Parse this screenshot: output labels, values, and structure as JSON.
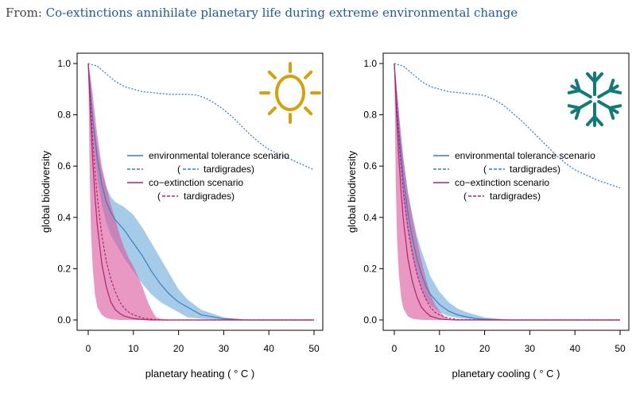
{
  "header": {
    "prefix": "From:",
    "link_text": "Co-extinctions annihilate planetary life during extreme environmental change"
  },
  "colors": {
    "tolerance": "#3a7fc1",
    "tolerance_band": "#6aa9d8",
    "coextinction": "#b0246e",
    "coextinction_band": "#d9549a",
    "sun": "#d4a20f",
    "snowflake": "#127a78",
    "header_link": "#1f5aa0"
  },
  "chart_data": [
    {
      "type": "line",
      "icon": "sun-icon",
      "xlabel": "planetary heating ( ° C )",
      "ylabel": "global biodiversity",
      "xlim": [
        0,
        50
      ],
      "ylim": [
        0,
        1
      ],
      "xticks": [
        "0",
        "10",
        "20",
        "30",
        "40",
        "50"
      ],
      "yticks": [
        "0.0",
        "0.2",
        "0.4",
        "0.6",
        "0.8",
        "1.0"
      ],
      "grid": false,
      "legend_position": "center-right",
      "legend": [
        "environmental tolerance scenario",
        "(",
        "tardigrades)",
        "co−extinction scenario",
        "(",
        "tardigrades)"
      ],
      "series": [
        {
          "kind": "tolerance-mean",
          "x": [
            0,
            1,
            2,
            3,
            4,
            5,
            6,
            8,
            10,
            12,
            14,
            16,
            18,
            20,
            22,
            25,
            30,
            35,
            40,
            50
          ],
          "values": [
            1.0,
            0.78,
            0.63,
            0.53,
            0.46,
            0.42,
            0.39,
            0.35,
            0.3,
            0.25,
            0.19,
            0.14,
            0.1,
            0.07,
            0.05,
            0.02,
            0.005,
            0.0,
            0.0,
            0.0
          ]
        },
        {
          "kind": "tolerance-upper",
          "x": [
            0,
            1,
            2,
            3,
            4,
            5,
            6,
            8,
            10,
            12,
            14,
            16,
            18,
            20,
            22,
            25,
            30,
            35,
            40,
            50
          ],
          "values": [
            1.0,
            0.82,
            0.68,
            0.58,
            0.52,
            0.48,
            0.46,
            0.44,
            0.41,
            0.36,
            0.3,
            0.24,
            0.18,
            0.12,
            0.08,
            0.04,
            0.01,
            0.0,
            0.0,
            0.0
          ]
        },
        {
          "kind": "tolerance-lower",
          "x": [
            0,
            1,
            2,
            3,
            4,
            5,
            6,
            8,
            10,
            12,
            14,
            16,
            18,
            20,
            22,
            25,
            30,
            35,
            40,
            50
          ],
          "values": [
            1.0,
            0.72,
            0.55,
            0.45,
            0.38,
            0.33,
            0.3,
            0.24,
            0.19,
            0.14,
            0.1,
            0.07,
            0.05,
            0.03,
            0.01,
            0.005,
            0.0,
            0.0,
            0.0,
            0.0
          ]
        },
        {
          "kind": "tardigrades-tolerance",
          "x": [
            0,
            2,
            4,
            6,
            8,
            10,
            12,
            15,
            18,
            20,
            22,
            24,
            26,
            28,
            30,
            32,
            34,
            36,
            38,
            40,
            45,
            50
          ],
          "values": [
            1.0,
            0.99,
            0.96,
            0.93,
            0.91,
            0.9,
            0.89,
            0.885,
            0.88,
            0.88,
            0.88,
            0.877,
            0.865,
            0.845,
            0.82,
            0.79,
            0.755,
            0.72,
            0.69,
            0.665,
            0.625,
            0.585
          ]
        },
        {
          "kind": "coextinction-mean",
          "x": [
            0,
            0.5,
            1,
            1.5,
            2,
            3,
            4,
            5,
            6,
            7,
            8,
            10,
            12,
            14,
            16,
            20,
            50
          ],
          "values": [
            1.0,
            0.8,
            0.62,
            0.48,
            0.37,
            0.22,
            0.13,
            0.07,
            0.04,
            0.025,
            0.015,
            0.006,
            0.002,
            0.0,
            0.0,
            0.0,
            0.0
          ]
        },
        {
          "kind": "coextinction-upper",
          "x": [
            0,
            0.5,
            1,
            1.5,
            2,
            3,
            4,
            5,
            6,
            7,
            8,
            9,
            10,
            11,
            12,
            13,
            14,
            15,
            16,
            18,
            20,
            50
          ],
          "values": [
            1.0,
            0.95,
            0.88,
            0.8,
            0.72,
            0.6,
            0.52,
            0.45,
            0.39,
            0.33,
            0.28,
            0.24,
            0.21,
            0.17,
            0.13,
            0.08,
            0.04,
            0.01,
            0.005,
            0.001,
            0.0,
            0.0
          ]
        },
        {
          "kind": "coextinction-lower",
          "x": [
            0,
            0.3,
            0.6,
            1,
            1.5,
            2,
            3,
            4,
            5,
            7,
            10,
            50
          ],
          "values": [
            1.0,
            0.6,
            0.35,
            0.2,
            0.1,
            0.05,
            0.02,
            0.008,
            0.003,
            0.0,
            0.0,
            0.0
          ]
        },
        {
          "kind": "tardigrades-coextinction",
          "x": [
            0,
            0.5,
            1,
            1.5,
            2,
            3,
            4,
            5,
            6,
            7,
            8,
            9,
            10,
            12,
            14,
            16,
            20,
            30,
            40,
            50
          ],
          "values": [
            1.0,
            0.85,
            0.7,
            0.58,
            0.48,
            0.33,
            0.23,
            0.16,
            0.11,
            0.07,
            0.045,
            0.03,
            0.02,
            0.008,
            0.003,
            0.0,
            0.0,
            0.0,
            0.0,
            0.0
          ]
        }
      ]
    },
    {
      "type": "line",
      "icon": "snowflake-icon",
      "xlabel": "planetary cooling ( ° C )",
      "ylabel": "global biodiversity",
      "xlim": [
        0,
        50
      ],
      "ylim": [
        0,
        1
      ],
      "xticks": [
        "0",
        "10",
        "20",
        "30",
        "40",
        "50"
      ],
      "yticks": [
        "0.0",
        "0.2",
        "0.4",
        "0.6",
        "0.8",
        "1.0"
      ],
      "grid": false,
      "legend_position": "center-right",
      "legend": [
        "environmental tolerance scenario",
        "(",
        "tardigrades)",
        "co−extinction scenario",
        "(",
        "tardigrades)"
      ],
      "series": [
        {
          "kind": "tolerance-mean",
          "x": [
            0,
            0.5,
            1,
            1.5,
            2,
            3,
            4,
            5,
            6,
            7,
            8,
            10,
            12,
            14,
            16,
            18,
            20,
            25,
            30,
            50
          ],
          "values": [
            1.0,
            0.86,
            0.74,
            0.64,
            0.55,
            0.42,
            0.32,
            0.24,
            0.18,
            0.13,
            0.1,
            0.06,
            0.035,
            0.02,
            0.012,
            0.006,
            0.003,
            0.0,
            0.0,
            0.0
          ]
        },
        {
          "kind": "tolerance-upper",
          "x": [
            0,
            0.5,
            1,
            1.5,
            2,
            3,
            4,
            5,
            6,
            7,
            8,
            10,
            12,
            14,
            16,
            18,
            20,
            25,
            30,
            50
          ],
          "values": [
            1.0,
            0.9,
            0.8,
            0.71,
            0.63,
            0.5,
            0.41,
            0.33,
            0.27,
            0.22,
            0.17,
            0.11,
            0.07,
            0.045,
            0.03,
            0.02,
            0.01,
            0.002,
            0.0,
            0.0
          ]
        },
        {
          "kind": "tolerance-lower",
          "x": [
            0,
            0.5,
            1,
            1.5,
            2,
            3,
            4,
            5,
            6,
            7,
            8,
            10,
            12,
            14,
            16,
            20,
            50
          ],
          "values": [
            1.0,
            0.82,
            0.67,
            0.56,
            0.47,
            0.34,
            0.25,
            0.18,
            0.12,
            0.08,
            0.06,
            0.03,
            0.015,
            0.008,
            0.004,
            0.0,
            0.0
          ]
        },
        {
          "kind": "tardigrades-tolerance",
          "x": [
            0,
            2,
            4,
            6,
            8,
            10,
            12,
            15,
            18,
            20,
            22,
            24,
            26,
            28,
            30,
            32,
            34,
            36,
            38,
            40,
            45,
            50
          ],
          "values": [
            1.0,
            0.99,
            0.96,
            0.93,
            0.91,
            0.9,
            0.89,
            0.885,
            0.88,
            0.875,
            0.86,
            0.84,
            0.81,
            0.78,
            0.745,
            0.71,
            0.675,
            0.64,
            0.61,
            0.585,
            0.545,
            0.515
          ]
        },
        {
          "kind": "coextinction-mean",
          "x": [
            0,
            0.5,
            1,
            1.5,
            2,
            3,
            4,
            5,
            6,
            7,
            8,
            10,
            12,
            14,
            50
          ],
          "values": [
            1.0,
            0.8,
            0.63,
            0.5,
            0.39,
            0.24,
            0.15,
            0.09,
            0.05,
            0.03,
            0.015,
            0.004,
            0.001,
            0.0,
            0.0
          ]
        },
        {
          "kind": "coextinction-upper",
          "x": [
            0,
            0.5,
            1,
            1.5,
            2,
            3,
            4,
            5,
            6,
            7,
            8,
            9,
            10,
            11,
            12,
            14,
            50
          ],
          "values": [
            1.0,
            0.92,
            0.82,
            0.72,
            0.63,
            0.5,
            0.4,
            0.31,
            0.23,
            0.16,
            0.1,
            0.06,
            0.035,
            0.015,
            0.005,
            0.0,
            0.0
          ]
        },
        {
          "kind": "coextinction-lower",
          "x": [
            0,
            0.3,
            0.6,
            1,
            1.5,
            2,
            3,
            4,
            5,
            7,
            10,
            50
          ],
          "values": [
            1.0,
            0.55,
            0.32,
            0.18,
            0.09,
            0.045,
            0.015,
            0.005,
            0.002,
            0.0,
            0.0,
            0.0
          ]
        },
        {
          "kind": "tardigrades-coextinction",
          "x": [
            0,
            0.5,
            1,
            1.5,
            2,
            3,
            4,
            5,
            6,
            7,
            8,
            9,
            10,
            12,
            14,
            20,
            50
          ],
          "values": [
            1.0,
            0.85,
            0.71,
            0.6,
            0.5,
            0.36,
            0.26,
            0.18,
            0.12,
            0.08,
            0.05,
            0.03,
            0.02,
            0.007,
            0.002,
            0.0,
            0.0
          ]
        }
      ]
    }
  ]
}
